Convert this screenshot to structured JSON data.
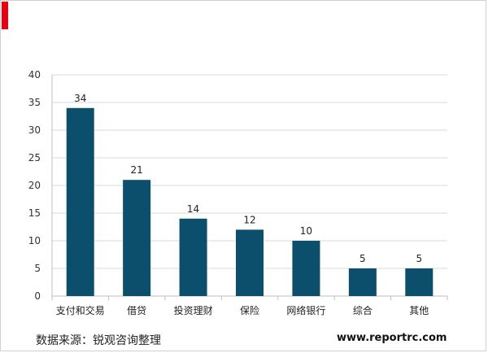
{
  "chart_data": {
    "type": "bar",
    "categories": [
      "支付和交易",
      "借贷",
      "投资理财",
      "保险",
      "网络银行",
      "综合",
      "其他"
    ],
    "values": [
      34,
      21,
      14,
      12,
      10,
      5,
      5
    ],
    "title": "",
    "xlabel": "",
    "ylabel": "",
    "ylim": [
      0,
      40
    ],
    "yticks": [
      0,
      5,
      10,
      15,
      20,
      25,
      30,
      35,
      40
    ],
    "grid": true,
    "bar_color": "#0b4f6c",
    "accent_color": "#e60012"
  },
  "footer": {
    "source": "数据来源：锐观咨询整理",
    "site": "www.reportrc.com"
  }
}
